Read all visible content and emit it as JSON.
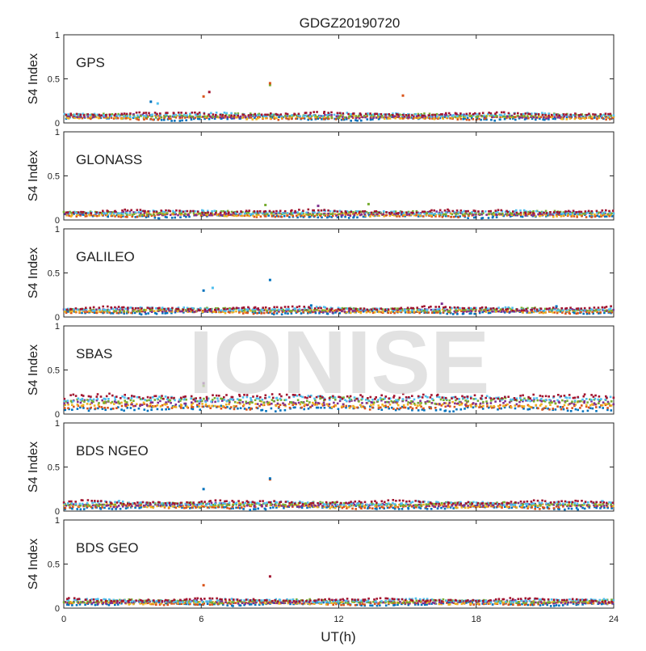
{
  "chart_data": {
    "type": "scatter",
    "title": "GDGZ20190720",
    "xlabel": "UT(h)",
    "ylabel": "S4 Index",
    "xlim": [
      0,
      24
    ],
    "ylim": [
      0,
      1
    ],
    "xticks": [
      "0",
      "6",
      "12",
      "18",
      "24"
    ],
    "yticks": [
      "0",
      "0.5",
      "1"
    ],
    "watermark": "IONISE",
    "series_colors": [
      "#0072BD",
      "#D95319",
      "#EDB120",
      "#7E2F8E",
      "#77AC30",
      "#4DBEEE",
      "#A2142F"
    ],
    "panels": [
      {
        "name": "GPS",
        "baseline": 0.075,
        "spread": 0.04,
        "outliers": [
          {
            "x": 6.1,
            "y": 0.3,
            "series": 1
          },
          {
            "x": 6.35,
            "y": 0.35,
            "series": 6
          },
          {
            "x": 9.0,
            "y": 0.43,
            "series": 4
          },
          {
            "x": 9.0,
            "y": 0.45,
            "series": 1
          },
          {
            "x": 14.8,
            "y": 0.31,
            "series": 1
          },
          {
            "x": 3.8,
            "y": 0.24,
            "series": 0
          },
          {
            "x": 4.1,
            "y": 0.22,
            "series": 5
          }
        ]
      },
      {
        "name": "GLONASS",
        "baseline": 0.07,
        "spread": 0.04,
        "outliers": [
          {
            "x": 8.8,
            "y": 0.17,
            "series": 4
          },
          {
            "x": 11.1,
            "y": 0.16,
            "series": 3
          },
          {
            "x": 13.3,
            "y": 0.18,
            "series": 4
          }
        ]
      },
      {
        "name": "GALILEO",
        "baseline": 0.075,
        "spread": 0.035,
        "outliers": [
          {
            "x": 6.1,
            "y": 0.3,
            "series": 0
          },
          {
            "x": 6.5,
            "y": 0.33,
            "series": 5
          },
          {
            "x": 9.0,
            "y": 0.42,
            "series": 0
          },
          {
            "x": 10.8,
            "y": 0.13,
            "series": 0
          },
          {
            "x": 16.5,
            "y": 0.15,
            "series": 3
          },
          {
            "x": 21.5,
            "y": 0.12,
            "series": 0
          }
        ]
      },
      {
        "name": "SBAS",
        "baseline": 0.13,
        "spread": 0.1,
        "outliers": [
          {
            "x": 6.1,
            "y": 0.35,
            "series": 3
          },
          {
            "x": 6.1,
            "y": 0.32,
            "series": 4
          }
        ]
      },
      {
        "name": "BDS NGEO",
        "baseline": 0.07,
        "spread": 0.045,
        "outliers": [
          {
            "x": 6.1,
            "y": 0.25,
            "series": 0
          },
          {
            "x": 9.0,
            "y": 0.36,
            "series": 1
          },
          {
            "x": 9.0,
            "y": 0.37,
            "series": 0
          }
        ]
      },
      {
        "name": "BDS GEO",
        "baseline": 0.07,
        "spread": 0.035,
        "outliers": [
          {
            "x": 6.1,
            "y": 0.26,
            "series": 1
          },
          {
            "x": 9.0,
            "y": 0.36,
            "series": 6
          }
        ]
      }
    ]
  }
}
